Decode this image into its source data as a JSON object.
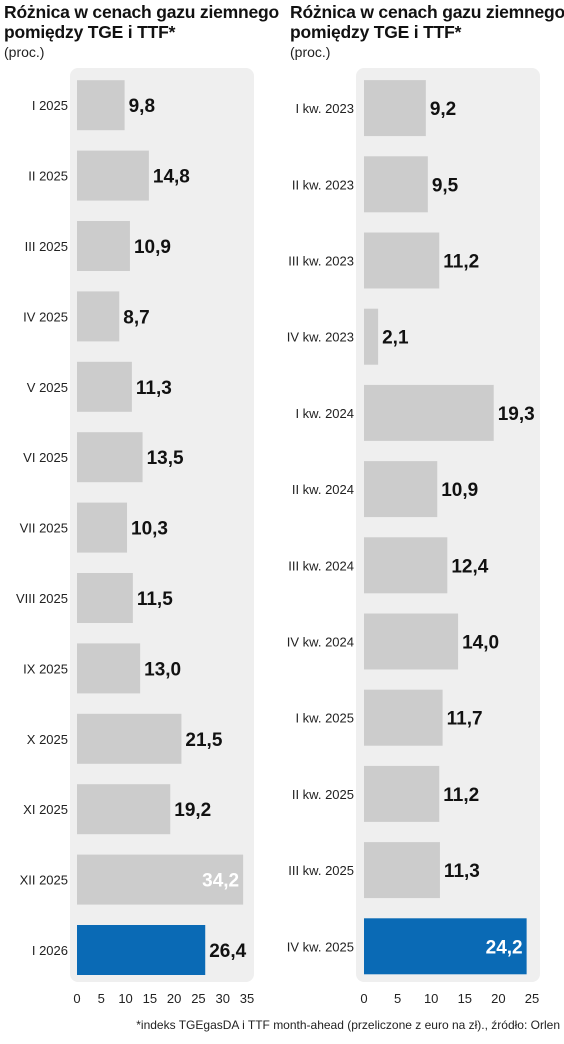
{
  "footnote": "*indeks TGEgasDA i TTF month-ahead (przeliczone z euro na zł)., źródło: Orlen",
  "colors": {
    "bar": "#cccccc",
    "highlight": "#0a6ab5",
    "panel_bg": "#efefef"
  },
  "chart_data": [
    {
      "type": "bar",
      "orientation": "horizontal",
      "title": "Różnica w cenach gazu ziemnego pomiędzy TGE i TTF*",
      "ylabel": "(proc.)",
      "categories": [
        "I 2025",
        "II 2025",
        "III 2025",
        "IV 2025",
        "V 2025",
        "VI 2025",
        "VII 2025",
        "VIII 2025",
        "IX 2025",
        "X 2025",
        "XI 2025",
        "XII 2025",
        "I 2026"
      ],
      "values": [
        9.8,
        14.8,
        10.9,
        8.7,
        11.3,
        13.5,
        10.3,
        11.5,
        13.0,
        21.5,
        19.2,
        34.2,
        26.4
      ],
      "value_labels": [
        "9,8",
        "14,8",
        "10,9",
        "8,7",
        "11,3",
        "13,5",
        "10,3",
        "11,5",
        "13,0",
        "21,5",
        "19,2",
        "34,2",
        "26,4"
      ],
      "highlight_index": 12,
      "xlim": [
        0,
        35
      ],
      "xticks": [
        "0",
        "5",
        "10",
        "15",
        "20",
        "25",
        "30",
        "35"
      ],
      "grid": false
    },
    {
      "type": "bar",
      "orientation": "horizontal",
      "title": "Różnica w cenach gazu ziemnego pomiędzy TGE i TTF*",
      "ylabel": "(proc.)",
      "categories": [
        "I kw. 2023",
        "II kw. 2023",
        "III kw. 2023",
        "IV kw. 2023",
        "I kw. 2024",
        "II kw. 2024",
        "III kw. 2024",
        "IV kw. 2024",
        "I kw. 2025",
        "II kw. 2025",
        "III kw. 2025",
        "IV kw. 2025"
      ],
      "values": [
        9.2,
        9.5,
        11.2,
        2.1,
        19.3,
        10.9,
        12.4,
        14.0,
        11.7,
        11.2,
        11.3,
        24.2
      ],
      "value_labels": [
        "9,2",
        "9,5",
        "11,2",
        "2,1",
        "19,3",
        "10,9",
        "12,4",
        "14,0",
        "11,7",
        "11,2",
        "11,3",
        "24,2"
      ],
      "highlight_index": 11,
      "xlim": [
        0,
        25
      ],
      "xticks": [
        "0",
        "5",
        "10",
        "15",
        "20",
        "25"
      ],
      "grid": false
    }
  ]
}
